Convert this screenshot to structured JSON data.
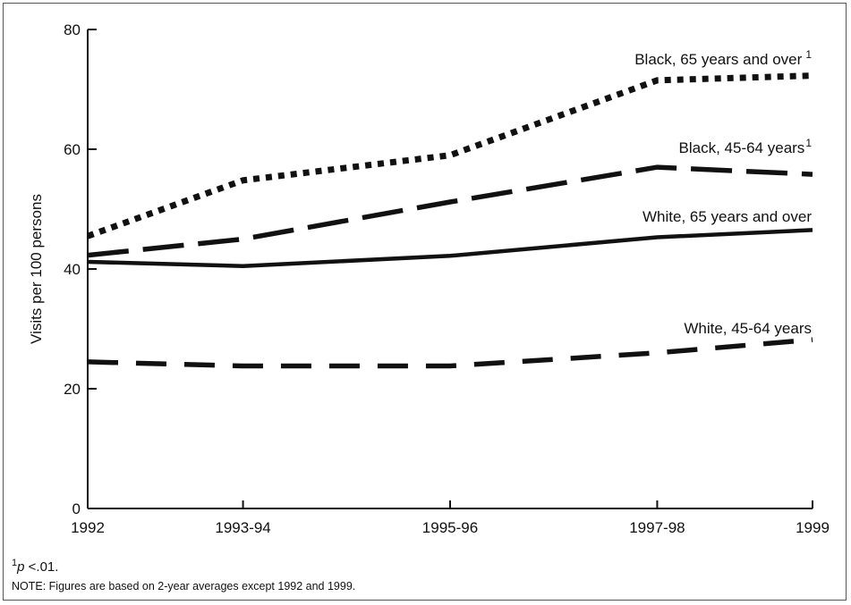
{
  "chart_data": {
    "type": "line",
    "ylabel": "Visits per 100 persons",
    "xlabel": "",
    "x_categories": [
      "1992",
      "1993-94",
      "1995-96",
      "1997-98",
      "1999"
    ],
    "x_positions": [
      1992,
      1993.5,
      1995.5,
      1997.5,
      1999
    ],
    "ylim": [
      0,
      80
    ],
    "yticks": [
      0,
      20,
      40,
      60,
      80
    ],
    "grid": false,
    "legend": "inline labels",
    "series": [
      {
        "name": "Black, 65 years and over",
        "superscript": "1",
        "style": "dotted",
        "values": [
          45.5,
          54.8,
          59.0,
          71.5,
          72.3
        ]
      },
      {
        "name": "Black, 45-64 years",
        "superscript": "1",
        "style": "long-dash",
        "values": [
          42.3,
          45.0,
          51.2,
          57.0,
          55.8
        ]
      },
      {
        "name": "White, 65 years and over",
        "superscript": "",
        "style": "solid",
        "values": [
          41.2,
          40.5,
          42.2,
          45.3,
          46.5
        ]
      },
      {
        "name": "White, 45-64 years",
        "superscript": "",
        "style": "dash",
        "values": [
          24.5,
          23.8,
          23.8,
          26.0,
          28.2
        ]
      }
    ]
  },
  "footnotes": {
    "sig_sup": "1",
    "sig_p": "p",
    "sig_rest": " <.01.",
    "note": "NOTE: Figures are based on 2-year averages except 1992 and 1999."
  },
  "colors": {
    "ink": "#111111",
    "frame": "#555555"
  }
}
